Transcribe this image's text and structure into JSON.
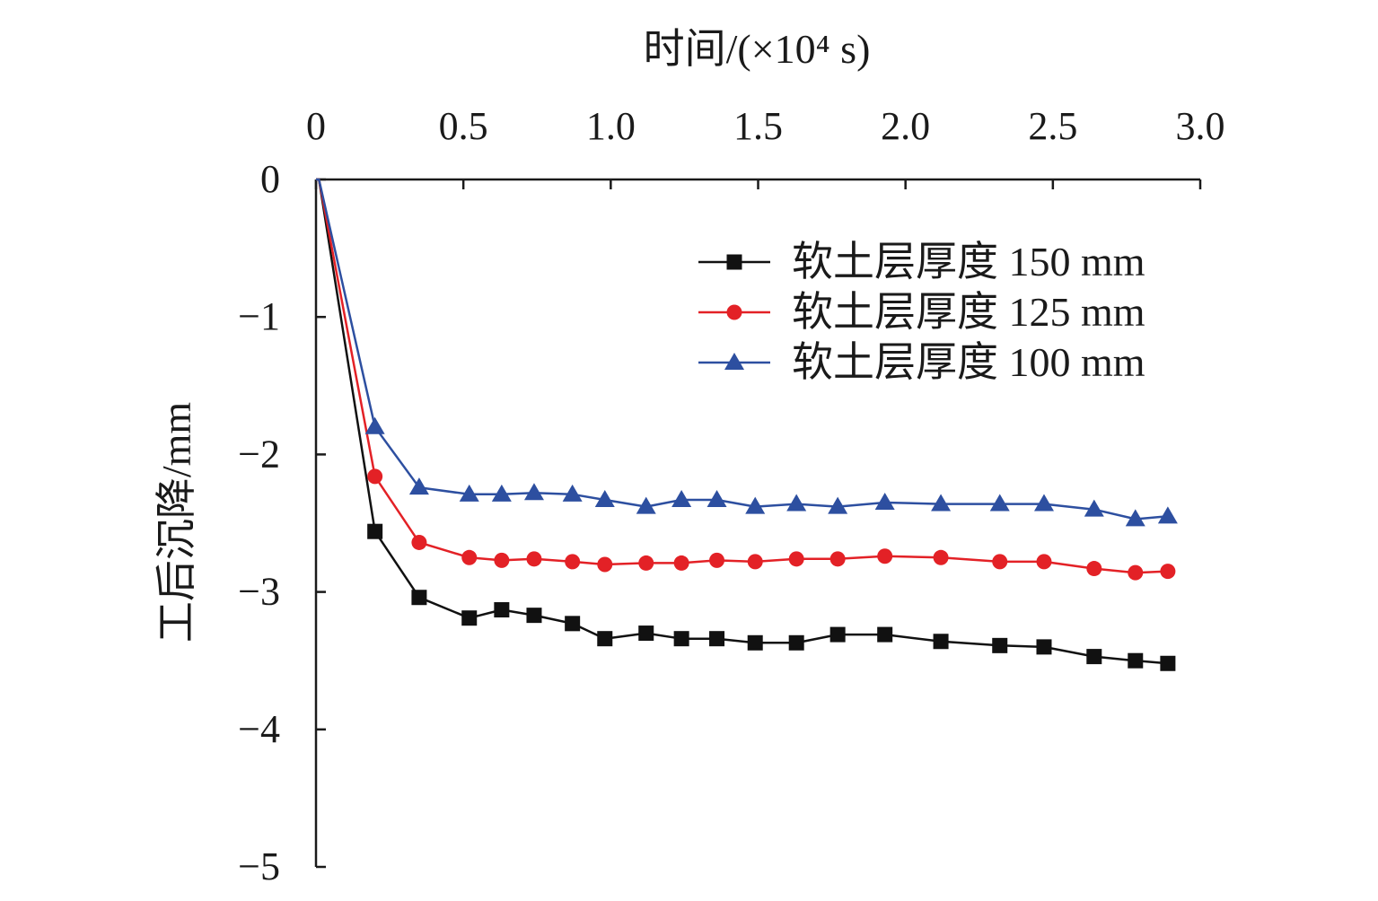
{
  "chart_data": {
    "type": "line",
    "title": "",
    "xlabel": "时间/(×10⁴ s)",
    "ylabel": "工后沉降/mm",
    "xlim": [
      0,
      3.0
    ],
    "ylim": [
      -5,
      0
    ],
    "x_axis_position": "top",
    "x_ticks": [
      0,
      0.5,
      1.0,
      1.5,
      2.0,
      2.5,
      3.0
    ],
    "x_tick_labels": [
      "0",
      "0.5",
      "1.0",
      "1.5",
      "2.0",
      "2.5",
      "3.0"
    ],
    "y_ticks": [
      0,
      -1,
      -2,
      -3,
      -4,
      -5
    ],
    "y_tick_labels": [
      "0",
      "−1",
      "−2",
      "−3",
      "−4",
      "−5"
    ],
    "legend_position": "top-right",
    "series": [
      {
        "name": "软土层厚度 150 mm",
        "color": "#111111",
        "marker": "square",
        "x": [
          0.01,
          0.2,
          0.35,
          0.52,
          0.63,
          0.74,
          0.87,
          0.98,
          1.12,
          1.24,
          1.36,
          1.49,
          1.63,
          1.77,
          1.93,
          2.12,
          2.32,
          2.47,
          2.64,
          2.78,
          2.89
        ],
        "y": [
          0,
          -2.56,
          -3.04,
          -3.19,
          -3.13,
          -3.17,
          -3.23,
          -3.34,
          -3.3,
          -3.34,
          -3.34,
          -3.37,
          -3.37,
          -3.31,
          -3.31,
          -3.36,
          -3.39,
          -3.4,
          -3.47,
          -3.5,
          -3.52
        ]
      },
      {
        "name": "软土层厚度 125 mm",
        "color": "#e32126",
        "marker": "circle",
        "x": [
          0.01,
          0.2,
          0.35,
          0.52,
          0.63,
          0.74,
          0.87,
          0.98,
          1.12,
          1.24,
          1.36,
          1.49,
          1.63,
          1.77,
          1.93,
          2.12,
          2.32,
          2.47,
          2.64,
          2.78,
          2.89
        ],
        "y": [
          0,
          -2.16,
          -2.64,
          -2.75,
          -2.77,
          -2.76,
          -2.78,
          -2.8,
          -2.79,
          -2.79,
          -2.77,
          -2.78,
          -2.76,
          -2.76,
          -2.74,
          -2.75,
          -2.78,
          -2.78,
          -2.83,
          -2.86,
          -2.85
        ]
      },
      {
        "name": "软土层厚度 100 mm",
        "color": "#2d4fa0",
        "marker": "triangle",
        "x": [
          0.01,
          0.2,
          0.35,
          0.52,
          0.63,
          0.74,
          0.87,
          0.98,
          1.12,
          1.24,
          1.36,
          1.49,
          1.63,
          1.77,
          1.93,
          2.12,
          2.32,
          2.47,
          2.64,
          2.78,
          2.89
        ],
        "y": [
          0,
          -1.8,
          -2.24,
          -2.29,
          -2.29,
          -2.28,
          -2.29,
          -2.33,
          -2.38,
          -2.33,
          -2.33,
          -2.38,
          -2.36,
          -2.38,
          -2.35,
          -2.36,
          -2.36,
          -2.36,
          -2.4,
          -2.47,
          -2.45
        ]
      }
    ]
  }
}
